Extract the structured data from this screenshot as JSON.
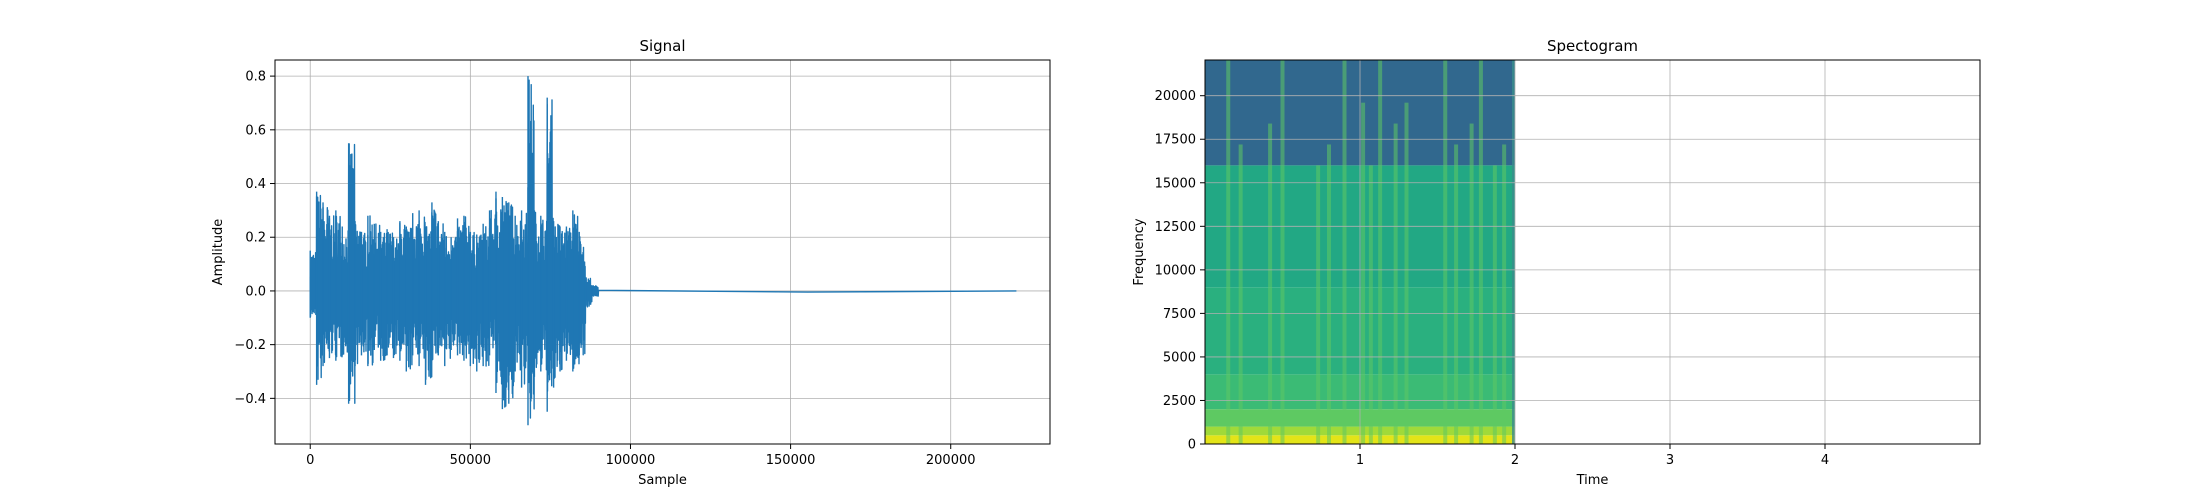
{
  "chart_data": [
    {
      "type": "line",
      "title": "Signal",
      "xlabel": "Sample",
      "ylabel": "Amplitude",
      "xlim": [
        -11000,
        231000
      ],
      "ylim": [
        -0.57,
        0.86
      ],
      "xticks": [
        0,
        50000,
        100000,
        150000,
        200000
      ],
      "xtick_labels": [
        "0",
        "50000",
        "100000",
        "150000",
        "200000"
      ],
      "yticks": [
        -0.4,
        -0.2,
        0.0,
        0.2,
        0.4,
        0.6,
        0.8
      ],
      "ytick_labels": [
        "−0.4",
        "−0.2",
        "0.0",
        "0.2",
        "0.4",
        "0.6",
        "0.8"
      ],
      "grid": true,
      "line_color": "#1f77b4",
      "series": [
        {
          "x": [
            0,
            2000,
            4000,
            6000,
            8000,
            10000,
            12000,
            14000,
            16000,
            18000,
            20000,
            22000,
            24000,
            26000,
            28000,
            30000,
            32000,
            34000,
            36000,
            38000,
            40000,
            42000,
            44000,
            46000,
            48000,
            50000,
            52000,
            54000,
            56000,
            58000,
            60000,
            62000,
            64000,
            66000,
            68000,
            70000,
            72000,
            74000,
            76000,
            78000,
            80000,
            82000,
            84000,
            86000,
            88000,
            90000,
            220500
          ],
          "ymax": [
            0.15,
            0.37,
            0.33,
            0.28,
            0.3,
            0.24,
            0.55,
            0.26,
            0.22,
            0.28,
            0.25,
            0.22,
            0.23,
            0.2,
            0.26,
            0.24,
            0.29,
            0.3,
            0.24,
            0.33,
            0.26,
            0.22,
            0.2,
            0.27,
            0.28,
            0.22,
            0.21,
            0.25,
            0.3,
            0.37,
            0.35,
            0.33,
            0.28,
            0.3,
            0.8,
            0.3,
            0.28,
            0.72,
            0.26,
            0.24,
            0.24,
            0.3,
            0.22,
            0.05,
            0.02,
            0.005,
            0.003
          ],
          "ymin": [
            -0.1,
            -0.35,
            -0.28,
            -0.25,
            -0.26,
            -0.24,
            -0.42,
            -0.28,
            -0.24,
            -0.28,
            -0.22,
            -0.26,
            -0.24,
            -0.25,
            -0.26,
            -0.3,
            -0.24,
            -0.28,
            -0.35,
            -0.26,
            -0.24,
            -0.28,
            -0.22,
            -0.24,
            -0.26,
            -0.28,
            -0.3,
            -0.28,
            -0.24,
            -0.38,
            -0.44,
            -0.42,
            -0.3,
            -0.36,
            -0.5,
            -0.32,
            -0.3,
            -0.45,
            -0.36,
            -0.3,
            -0.26,
            -0.3,
            -0.24,
            -0.06,
            -0.02,
            -0.005,
            -0.003
          ]
        }
      ]
    },
    {
      "type": "heatmap",
      "title": "Spectogram",
      "xlabel": "Time",
      "ylabel": "Frequency",
      "xlim": [
        0,
        5
      ],
      "ylim": [
        0,
        22050
      ],
      "xticks": [
        1,
        2,
        3,
        4
      ],
      "xtick_labels": [
        "1",
        "2",
        "3",
        "4"
      ],
      "yticks": [
        0,
        2500,
        5000,
        7500,
        10000,
        12500,
        15000,
        17500,
        20000
      ],
      "ytick_labels": [
        "0",
        "2500",
        "5000",
        "7500",
        "10000",
        "12500",
        "15000",
        "17500",
        "20000"
      ],
      "grid": true,
      "data_extent_time": [
        0,
        2
      ],
      "colormap": "viridis",
      "bands": [
        {
          "freq": [
            0,
            500
          ],
          "color": "#e3e418"
        },
        {
          "freq": [
            500,
            1000
          ],
          "color": "#a0da39"
        },
        {
          "freq": [
            1000,
            2000
          ],
          "color": "#5ec962"
        },
        {
          "freq": [
            2000,
            4000
          ],
          "color": "#3bbb75"
        },
        {
          "freq": [
            4000,
            9000
          ],
          "color": "#2ab07f"
        },
        {
          "freq": [
            9000,
            16000
          ],
          "color": "#22a884"
        },
        {
          "freq": [
            16000,
            22050
          ],
          "color": "#31688e"
        }
      ],
      "vertical_streaks": [
        0.15,
        0.23,
        0.42,
        0.5,
        0.73,
        0.8,
        0.9,
        1.02,
        1.07,
        1.13,
        1.23,
        1.3,
        1.55,
        1.62,
        1.72,
        1.78,
        1.87,
        1.93
      ]
    }
  ]
}
